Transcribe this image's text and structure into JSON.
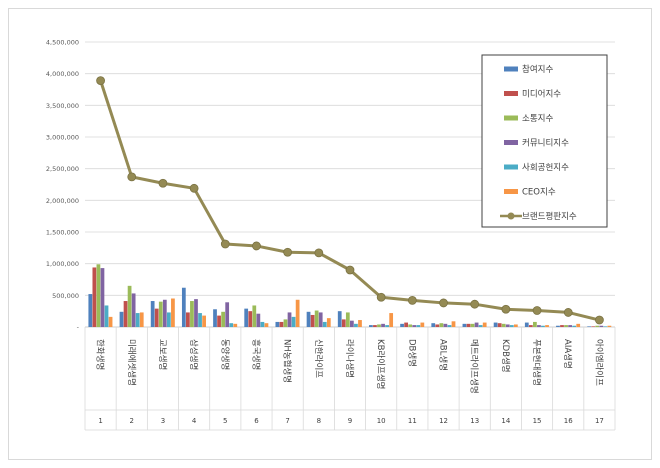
{
  "chart_data": {
    "type": "bar",
    "title": "",
    "xlabel": "",
    "ylabel": "",
    "ylim": [
      0,
      4500000
    ],
    "yticks": [
      "-",
      "500,000",
      "1,000,000",
      "1,500,000",
      "2,000,000",
      "2,500,000",
      "3,000,000",
      "3,500,000",
      "4,000,000",
      "4,500,000"
    ],
    "grid": true,
    "legend_position": "top-right",
    "categories": [
      "한화생명",
      "미래에셋생명",
      "교보생명",
      "삼성생명",
      "동양생명",
      "흥국생명",
      "NH농협생명",
      "신한라이프",
      "라이나생명",
      "KB라이프생명",
      "DB생명",
      "ABL생명",
      "메트라이프생명",
      "KDB생명",
      "푸본현대생명",
      "AIA생명",
      "아이엠라이프"
    ],
    "indices": [
      "1",
      "2",
      "3",
      "4",
      "5",
      "6",
      "7",
      "8",
      "9",
      "10",
      "11",
      "12",
      "13",
      "14",
      "15",
      "16",
      "17"
    ],
    "series": [
      {
        "name": "참여지수",
        "kind": "bar",
        "color": "#4f81bd",
        "values": [
          520000,
          240000,
          410000,
          620000,
          280000,
          290000,
          80000,
          240000,
          250000,
          30000,
          50000,
          60000,
          50000,
          70000,
          70000,
          20000,
          10000
        ]
      },
      {
        "name": "미디어지수",
        "kind": "bar",
        "color": "#c0504d",
        "values": [
          940000,
          410000,
          290000,
          230000,
          180000,
          250000,
          80000,
          190000,
          120000,
          30000,
          70000,
          40000,
          50000,
          60000,
          30000,
          30000,
          10000
        ]
      },
      {
        "name": "소통지수",
        "kind": "bar",
        "color": "#9bbb59",
        "values": [
          990000,
          650000,
          400000,
          410000,
          240000,
          340000,
          120000,
          260000,
          230000,
          40000,
          40000,
          60000,
          50000,
          50000,
          80000,
          30000,
          20000
        ]
      },
      {
        "name": "커뮤니티지수",
        "kind": "bar",
        "color": "#8064a2",
        "values": [
          930000,
          530000,
          430000,
          440000,
          390000,
          210000,
          230000,
          230000,
          100000,
          50000,
          30000,
          50000,
          70000,
          40000,
          30000,
          30000,
          20000
        ]
      },
      {
        "name": "사회공헌지수",
        "kind": "bar",
        "color": "#4bacc6",
        "values": [
          340000,
          220000,
          230000,
          220000,
          60000,
          80000,
          160000,
          80000,
          50000,
          30000,
          30000,
          30000,
          30000,
          30000,
          20000,
          20000,
          10000
        ]
      },
      {
        "name": "CEO지수",
        "kind": "bar",
        "color": "#f79646",
        "values": [
          160000,
          230000,
          450000,
          180000,
          50000,
          60000,
          430000,
          140000,
          110000,
          220000,
          70000,
          90000,
          70000,
          40000,
          30000,
          50000,
          20000
        ]
      },
      {
        "name": "브랜드평판지수",
        "kind": "line",
        "color": "#948a54",
        "values": [
          3890000,
          2370000,
          2270000,
          2190000,
          1310000,
          1280000,
          1180000,
          1170000,
          900000,
          470000,
          420000,
          380000,
          360000,
          280000,
          260000,
          230000,
          110000
        ]
      }
    ]
  }
}
